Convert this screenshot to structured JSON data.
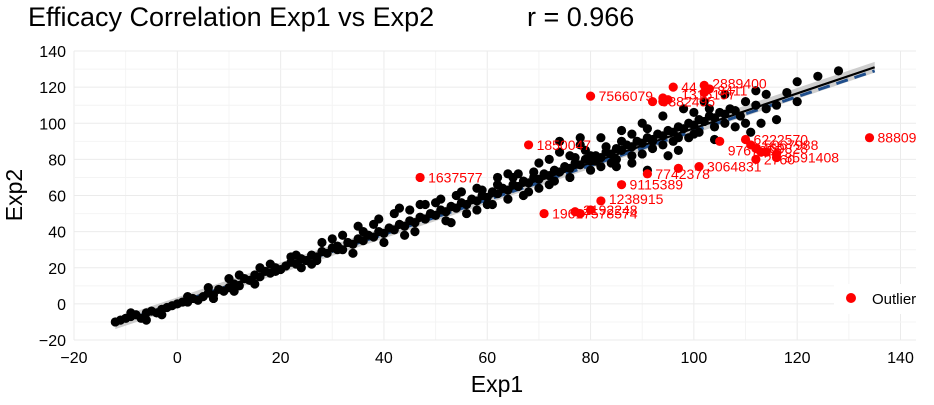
{
  "chart_data": {
    "type": "scatter",
    "title": "Efficacy Correlation Exp1 vs Exp2",
    "subtitle": "r = 0.966",
    "xlabel": "Exp1",
    "ylabel": "Exp2",
    "xlim": [
      -20,
      143
    ],
    "ylim": [
      -20,
      140
    ],
    "xticks": [
      -20,
      0,
      20,
      40,
      60,
      80,
      100,
      120,
      140
    ],
    "yticks": [
      -20,
      0,
      20,
      40,
      60,
      80,
      100,
      120,
      140
    ],
    "grid": true,
    "legend": {
      "position": "right",
      "entries": [
        {
          "label": "Outlier",
          "color": "#ff0000"
        }
      ]
    },
    "colors": {
      "points": "#000000",
      "outliers": "#ff0000",
      "fit_line": "#000000",
      "fit_band": "#bebebe",
      "dashed_line": "#1f4e8c"
    },
    "fit_line": {
      "x": [
        -12,
        135
      ],
      "y": [
        -11,
        131
      ]
    },
    "dashed_line": {
      "x": [
        -12,
        135
      ],
      "y": [
        -11,
        129
      ]
    },
    "series": [
      {
        "name": "",
        "color": "#000000",
        "points": [
          [
            -12,
            -10
          ],
          [
            -11,
            -9
          ],
          [
            -10,
            -8
          ],
          [
            -9,
            -7
          ],
          [
            -8,
            -6
          ],
          [
            -7,
            -8
          ],
          [
            -6,
            -5
          ],
          [
            -5,
            -4
          ],
          [
            -4,
            -5
          ],
          [
            -3,
            -3
          ],
          [
            -2,
            -2
          ],
          [
            -1,
            -1
          ],
          [
            0,
            0
          ],
          [
            1,
            1
          ],
          [
            2,
            1
          ],
          [
            3,
            3
          ],
          [
            4,
            2
          ],
          [
            5,
            4
          ],
          [
            6,
            6
          ],
          [
            7,
            5
          ],
          [
            8,
            8
          ],
          [
            9,
            7
          ],
          [
            10,
            9
          ],
          [
            11,
            11
          ],
          [
            12,
            10
          ],
          [
            13,
            14
          ],
          [
            14,
            13
          ],
          [
            15,
            16
          ],
          [
            16,
            15
          ],
          [
            17,
            18
          ],
          [
            18,
            17
          ],
          [
            19,
            20
          ],
          [
            20,
            19
          ],
          [
            21,
            21
          ],
          [
            22,
            23
          ],
          [
            23,
            22
          ],
          [
            24,
            25
          ],
          [
            25,
            24
          ],
          [
            26,
            27
          ],
          [
            27,
            26
          ],
          [
            28,
            29
          ],
          [
            29,
            28
          ],
          [
            30,
            31
          ],
          [
            31,
            32
          ],
          [
            32,
            30
          ],
          [
            33,
            34
          ],
          [
            34,
            33
          ],
          [
            35,
            36
          ],
          [
            36,
            35
          ],
          [
            37,
            38
          ],
          [
            38,
            37
          ],
          [
            39,
            40
          ],
          [
            40,
            39
          ],
          [
            41,
            42
          ],
          [
            42,
            41
          ],
          [
            43,
            44
          ],
          [
            44,
            43
          ],
          [
            45,
            46
          ],
          [
            46,
            45
          ],
          [
            47,
            48
          ],
          [
            48,
            47
          ],
          [
            49,
            50
          ],
          [
            50,
            49
          ],
          [
            51,
            52
          ],
          [
            52,
            51
          ],
          [
            53,
            54
          ],
          [
            54,
            53
          ],
          [
            55,
            56
          ],
          [
            56,
            55
          ],
          [
            57,
            58
          ],
          [
            58,
            57
          ],
          [
            59,
            60
          ],
          [
            60,
            59
          ],
          [
            61,
            62
          ],
          [
            62,
            61
          ],
          [
            63,
            64
          ],
          [
            64,
            63
          ],
          [
            65,
            66
          ],
          [
            66,
            65
          ],
          [
            67,
            68
          ],
          [
            68,
            67
          ],
          [
            69,
            70
          ],
          [
            70,
            69
          ],
          [
            71,
            72
          ],
          [
            72,
            71
          ],
          [
            73,
            74
          ],
          [
            74,
            73
          ],
          [
            75,
            76
          ],
          [
            76,
            75
          ],
          [
            77,
            78
          ],
          [
            78,
            77
          ],
          [
            79,
            80
          ],
          [
            80,
            79
          ],
          [
            81,
            82
          ],
          [
            82,
            81
          ],
          [
            83,
            84
          ],
          [
            84,
            83
          ],
          [
            85,
            86
          ],
          [
            86,
            85
          ],
          [
            87,
            88
          ],
          [
            88,
            87
          ],
          [
            89,
            90
          ],
          [
            90,
            89
          ],
          [
            91,
            92
          ],
          [
            92,
            91
          ],
          [
            93,
            94
          ],
          [
            94,
            93
          ],
          [
            95,
            96
          ],
          [
            96,
            95
          ],
          [
            97,
            98
          ],
          [
            98,
            97
          ],
          [
            99,
            100
          ],
          [
            100,
            99
          ],
          [
            101,
            102
          ],
          [
            102,
            101
          ],
          [
            103,
            104
          ],
          [
            104,
            103
          ],
          [
            105,
            106
          ],
          [
            106,
            105
          ],
          [
            107,
            108
          ],
          [
            108,
            107
          ],
          [
            110,
            112
          ],
          [
            112,
            110
          ],
          [
            114,
            116
          ],
          [
            118,
            117
          ],
          [
            120,
            123
          ],
          [
            124,
            126
          ],
          [
            128,
            129
          ],
          [
            12,
            16
          ],
          [
            18,
            22
          ],
          [
            24,
            20
          ],
          [
            30,
            36
          ],
          [
            34,
            28
          ],
          [
            38,
            44
          ],
          [
            40,
            34
          ],
          [
            42,
            50
          ],
          [
            46,
            40
          ],
          [
            48,
            55
          ],
          [
            52,
            46
          ],
          [
            54,
            60
          ],
          [
            56,
            50
          ],
          [
            58,
            64
          ],
          [
            60,
            55
          ],
          [
            62,
            70
          ],
          [
            64,
            58
          ],
          [
            66,
            72
          ],
          [
            68,
            62
          ],
          [
            70,
            78
          ],
          [
            72,
            66
          ],
          [
            74,
            84
          ],
          [
            76,
            70
          ],
          [
            78,
            88
          ],
          [
            80,
            74
          ],
          [
            82,
            92
          ],
          [
            84,
            78
          ],
          [
            86,
            96
          ],
          [
            88,
            82
          ],
          [
            90,
            100
          ],
          [
            92,
            86
          ],
          [
            94,
            104
          ],
          [
            96,
            90
          ],
          [
            98,
            108
          ],
          [
            100,
            94
          ],
          [
            102,
            112
          ],
          [
            104,
            98
          ],
          [
            106,
            116
          ],
          [
            110,
            100
          ],
          [
            114,
            108
          ],
          [
            116,
            102
          ],
          [
            120,
            112
          ],
          [
            26,
            22
          ],
          [
            36,
            40
          ],
          [
            44,
            38
          ],
          [
            50,
            56
          ],
          [
            58,
            52
          ],
          [
            64,
            72
          ],
          [
            70,
            64
          ],
          [
            76,
            82
          ],
          [
            82,
            76
          ],
          [
            88,
            94
          ],
          [
            94,
            88
          ],
          [
            100,
            106
          ],
          [
            106,
            100
          ],
          [
            112,
            118
          ],
          [
            45,
            52
          ],
          [
            53,
            45
          ],
          [
            61,
            55
          ],
          [
            67,
            60
          ],
          [
            73,
            68
          ],
          [
            79,
            85
          ],
          [
            85,
            80
          ],
          [
            91,
            97
          ],
          [
            97,
            92
          ],
          [
            103,
            108
          ],
          [
            109,
            104
          ],
          [
            32,
            38
          ],
          [
            28,
            34
          ],
          [
            22,
            26
          ],
          [
            16,
            20
          ],
          [
            10,
            14
          ],
          [
            6,
            9
          ],
          [
            2,
            4
          ],
          [
            -3,
            -6
          ],
          [
            -6,
            -9
          ],
          [
            -9,
            -5
          ],
          [
            74,
            90
          ],
          [
            78,
            92
          ],
          [
            80,
            82
          ],
          [
            83,
            87
          ],
          [
            86,
            90
          ],
          [
            90,
            83
          ],
          [
            92,
            90
          ],
          [
            95,
            82
          ],
          [
            97,
            85
          ],
          [
            99,
            92
          ],
          [
            101,
            95
          ],
          [
            104,
            91
          ],
          [
            108,
            98
          ],
          [
            111,
            95
          ],
          [
            113,
            100
          ],
          [
            116,
            110
          ],
          [
            91,
            74
          ],
          [
            88,
            78
          ],
          [
            85,
            76
          ],
          [
            81,
            79
          ],
          [
            77,
            81
          ],
          [
            72,
            80
          ],
          [
            69,
            73
          ],
          [
            65,
            70
          ],
          [
            62,
            66
          ],
          [
            59,
            63
          ],
          [
            55,
            62
          ],
          [
            51,
            58
          ],
          [
            47,
            55
          ],
          [
            43,
            53
          ],
          [
            39,
            47
          ],
          [
            35,
            43
          ],
          [
            31,
            30
          ],
          [
            27,
            24
          ],
          [
            23,
            27
          ],
          [
            19,
            18
          ],
          [
            15,
            11
          ],
          [
            11,
            7
          ],
          [
            7,
            3
          ]
        ]
      },
      {
        "name": "Outlier",
        "color": "#ff0000",
        "points": [
          [
            134,
            92
          ],
          [
            105,
            90
          ],
          [
            110,
            91
          ],
          [
            111,
            88
          ],
          [
            112,
            86
          ],
          [
            113,
            84
          ],
          [
            114,
            84
          ],
          [
            112,
            80
          ],
          [
            116,
            81
          ],
          [
            116,
            83
          ],
          [
            101,
            76
          ],
          [
            97,
            75
          ],
          [
            91,
            72
          ],
          [
            86,
            66
          ],
          [
            82,
            57
          ],
          [
            80,
            52
          ],
          [
            78,
            50
          ],
          [
            77,
            51
          ],
          [
            71,
            50
          ],
          [
            80,
            115
          ],
          [
            96,
            120
          ],
          [
            102,
            121
          ],
          [
            103,
            119
          ],
          [
            102,
            117
          ],
          [
            94,
            114
          ],
          [
            94,
            112
          ],
          [
            92,
            112
          ],
          [
            95,
            113
          ],
          [
            68,
            88
          ],
          [
            47,
            70
          ]
        ]
      }
    ],
    "annotations": [
      {
        "text": "88809",
        "x": 134,
        "y": 92
      },
      {
        "text": "6222570",
        "x": 110,
        "y": 91
      },
      {
        "text": "5067988",
        "x": 112,
        "y": 88
      },
      {
        "text": "8469828",
        "x": 110,
        "y": 86
      },
      {
        "text": "9767955",
        "x": 105,
        "y": 85
      },
      {
        "text": "2760",
        "x": 112,
        "y": 80
      },
      {
        "text": "8591408",
        "x": 116,
        "y": 81
      },
      {
        "text": "3064831",
        "x": 101,
        "y": 76
      },
      {
        "text": "7742378",
        "x": 91,
        "y": 72
      },
      {
        "text": "9115389",
        "x": 86,
        "y": 66
      },
      {
        "text": "1238915",
        "x": 82,
        "y": 58
      },
      {
        "text": "2192248",
        "x": 77,
        "y": 52
      },
      {
        "text": "1961",
        "x": 71,
        "y": 50
      },
      {
        "text": "7578574",
        "x": 77,
        "y": 50
      },
      {
        "text": "1637577",
        "x": 47,
        "y": 70
      },
      {
        "text": "1850047",
        "x": 68,
        "y": 88
      },
      {
        "text": "7566079",
        "x": 80,
        "y": 115
      },
      {
        "text": "44",
        "x": 96,
        "y": 120
      },
      {
        "text": "2889400",
        "x": 102,
        "y": 122
      },
      {
        "text": "8411",
        "x": 103,
        "y": 118
      },
      {
        "text": "1315157",
        "x": 96,
        "y": 116
      },
      {
        "text": "6382495",
        "x": 92,
        "y": 112
      }
    ]
  }
}
